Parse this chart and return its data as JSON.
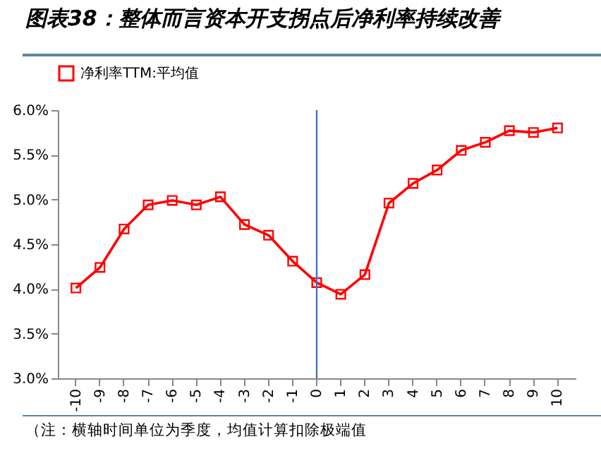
{
  "chart_data": {
    "type": "line",
    "title": "图表38：整体而言资本开支拐点后净利率持续改善",
    "categories": [
      "-10",
      "-9",
      "-8",
      "-7",
      "-6",
      "-5",
      "-4",
      "-3",
      "-2",
      "-1",
      "0",
      "1",
      "2",
      "3",
      "4",
      "5",
      "6",
      "7",
      "8",
      "9",
      "10"
    ],
    "series": [
      {
        "name": "净利率TTM:平均值",
        "color": "#ff0000",
        "values": [
          4.01,
          4.24,
          4.67,
          4.94,
          4.99,
          4.94,
          5.03,
          4.72,
          4.6,
          4.31,
          4.07,
          3.94,
          4.16,
          4.96,
          5.18,
          5.33,
          5.55,
          5.64,
          5.77,
          5.75,
          5.8
        ]
      }
    ],
    "ylim": [
      3,
      6
    ],
    "yticks": [
      {
        "value": 3,
        "label": "3.0%"
      },
      {
        "value": 3.5,
        "label": "3.5%"
      },
      {
        "value": 4,
        "label": "4.0%"
      },
      {
        "value": 4.5,
        "label": "4.5%"
      },
      {
        "value": 5,
        "label": "5.0%"
      },
      {
        "value": 5.5,
        "label": "5.5%"
      },
      {
        "value": 6,
        "label": "6.0%"
      }
    ],
    "ref_lines": [
      {
        "axis": "x",
        "value": "0",
        "color": "#4472c4"
      }
    ],
    "annotations": [
      "（注：横轴时间单位为季度，均值计算扣除极端值"
    ],
    "legend": "top",
    "marker": "square",
    "line_style": "solid",
    "grid": false
  }
}
